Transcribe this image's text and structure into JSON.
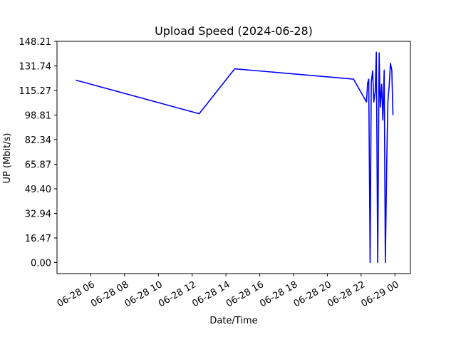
{
  "chart_data": {
    "type": "line",
    "title": "Upload Speed (2024-06-28)",
    "xlabel": "Date/Time",
    "ylabel": "UP (Mbit/s)",
    "x_tick_labels": [
      "06-28 06",
      "06-28 08",
      "06-28 10",
      "06-28 12",
      "06-28 14",
      "06-28 16",
      "06-28 18",
      "06-28 20",
      "06-28 22",
      "06-29 00"
    ],
    "x_ticks": [
      "2024-06-28 06:00",
      "2024-06-28 08:00",
      "2024-06-28 10:00",
      "2024-06-28 12:00",
      "2024-06-28 14:00",
      "2024-06-28 16:00",
      "2024-06-28 18:00",
      "2024-06-28 20:00",
      "2024-06-28 22:00",
      "2024-06-29 00:00"
    ],
    "xlim": [
      "2024-06-28 04:00",
      "2024-06-29 00:55"
    ],
    "y_tick_labels": [
      "0.00",
      "16.47",
      "32.94",
      "49.40",
      "65.87",
      "82.34",
      "98.81",
      "115.27",
      "131.74",
      "148.21"
    ],
    "y_ticks": [
      0.0,
      16.47,
      32.94,
      49.4,
      65.87,
      82.34,
      98.81,
      115.27,
      131.74,
      148.21
    ],
    "ylim": [
      -7.41,
      148.21
    ],
    "grid": false,
    "series": [
      {
        "color": "#0000ff",
        "x": [
          "2024-06-28 05:07",
          "2024-06-28 12:25",
          "2024-06-28 14:31",
          "2024-06-28 21:33",
          "2024-06-28 22:19",
          "2024-06-28 22:23",
          "2024-06-28 22:27",
          "2024-06-28 22:32",
          "2024-06-28 22:36",
          "2024-06-28 22:41",
          "2024-06-28 22:45",
          "2024-06-28 22:50",
          "2024-06-28 22:54",
          "2024-06-28 22:59",
          "2024-06-28 23:04",
          "2024-06-28 23:08",
          "2024-06-28 23:13",
          "2024-06-28 23:17",
          "2024-06-28 23:22",
          "2024-06-28 23:26",
          "2024-06-28 23:31",
          "2024-06-28 23:35",
          "2024-06-28 23:40",
          "2024-06-28 23:44",
          "2024-06-28 23:49",
          "2024-06-28 23:53"
        ],
        "y": [
          122.2,
          99.7,
          129.8,
          122.9,
          107.6,
          120.1,
          122.9,
          0.0,
          120.9,
          128.4,
          107.6,
          114.6,
          140.9,
          0.0,
          140.5,
          104.1,
          119.4,
          95.5,
          128.9,
          0.0,
          67.4,
          107.6,
          119.4,
          133.5,
          128.9,
          98.8
        ]
      }
    ]
  }
}
